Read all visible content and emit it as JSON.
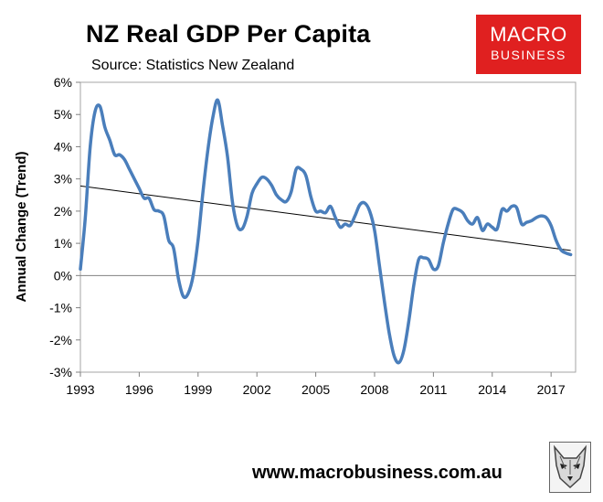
{
  "header": {
    "title": "NZ Real GDP Per Capita",
    "source": "Source: Statistics New Zealand"
  },
  "logo": {
    "line1": "MACRO",
    "line2": "BUSINESS",
    "color": "#e02020"
  },
  "footer": {
    "url": "www.macrobusiness.com.au"
  },
  "chart_data": {
    "type": "line",
    "title": "NZ Real GDP Per Capita",
    "xlabel": "",
    "ylabel": "Annual Change (Trend)",
    "xlim": [
      1993,
      2018.25
    ],
    "ylim": [
      -3,
      6
    ],
    "x_ticks": [
      1993,
      1996,
      1999,
      2002,
      2005,
      2008,
      2011,
      2014,
      2017
    ],
    "x_tick_labels": [
      "1993",
      "1996",
      "1999",
      "2002",
      "2005",
      "2008",
      "2011",
      "2014",
      "2017"
    ],
    "y_ticks": [
      -3,
      -2,
      -1,
      0,
      1,
      2,
      3,
      4,
      5,
      6
    ],
    "y_tick_labels": [
      "-3%",
      "-2%",
      "-1%",
      "0%",
      "1%",
      "2%",
      "3%",
      "4%",
      "5%",
      "6%"
    ],
    "grid": false,
    "series": [
      {
        "name": "Annual change",
        "color": "#4a7ebb",
        "x": [
          1993.0,
          1993.25,
          1993.5,
          1993.75,
          1994.0,
          1994.25,
          1994.5,
          1994.75,
          1995.0,
          1995.25,
          1995.5,
          1995.75,
          1996.0,
          1996.25,
          1996.5,
          1996.75,
          1997.0,
          1997.25,
          1997.5,
          1997.75,
          1998.0,
          1998.25,
          1998.5,
          1998.75,
          1999.0,
          1999.25,
          1999.5,
          1999.75,
          2000.0,
          2000.25,
          2000.5,
          2000.75,
          2001.0,
          2001.25,
          2001.5,
          2001.75,
          2002.0,
          2002.25,
          2002.5,
          2002.75,
          2003.0,
          2003.25,
          2003.5,
          2003.75,
          2004.0,
          2004.25,
          2004.5,
          2004.75,
          2005.0,
          2005.25,
          2005.5,
          2005.75,
          2006.0,
          2006.25,
          2006.5,
          2006.75,
          2007.0,
          2007.25,
          2007.5,
          2007.75,
          2008.0,
          2008.25,
          2008.5,
          2008.75,
          2009.0,
          2009.25,
          2009.5,
          2009.75,
          2010.0,
          2010.25,
          2010.5,
          2010.75,
          2011.0,
          2011.25,
          2011.5,
          2011.75,
          2012.0,
          2012.25,
          2012.5,
          2012.75,
          2013.0,
          2013.25,
          2013.5,
          2013.75,
          2014.0,
          2014.25,
          2014.5,
          2014.75,
          2015.0,
          2015.25,
          2015.5,
          2015.75,
          2016.0,
          2016.25,
          2016.5,
          2016.75,
          2017.0,
          2017.25,
          2017.5,
          2017.75,
          2018.0
        ],
        "values": [
          0.2,
          1.8,
          4.0,
          5.1,
          5.25,
          4.6,
          4.2,
          3.75,
          3.75,
          3.6,
          3.3,
          3.0,
          2.7,
          2.4,
          2.4,
          2.05,
          2.0,
          1.85,
          1.1,
          0.85,
          -0.1,
          -0.65,
          -0.55,
          0.0,
          1.1,
          2.6,
          3.9,
          4.9,
          5.45,
          4.65,
          3.7,
          2.3,
          1.55,
          1.45,
          1.85,
          2.55,
          2.85,
          3.05,
          3.0,
          2.8,
          2.5,
          2.35,
          2.3,
          2.6,
          3.3,
          3.3,
          3.1,
          2.45,
          2.0,
          2.0,
          1.95,
          2.15,
          1.8,
          1.5,
          1.6,
          1.55,
          1.85,
          2.2,
          2.25,
          2.0,
          1.4,
          0.3,
          -0.8,
          -1.8,
          -2.5,
          -2.7,
          -2.3,
          -1.4,
          -0.3,
          0.5,
          0.55,
          0.5,
          0.2,
          0.3,
          1.0,
          1.6,
          2.05,
          2.05,
          1.95,
          1.7,
          1.6,
          1.8,
          1.4,
          1.6,
          1.5,
          1.45,
          2.05,
          2.0,
          2.15,
          2.1,
          1.6,
          1.65,
          1.7,
          1.8,
          1.85,
          1.8,
          1.55,
          1.1,
          0.8,
          0.7,
          0.65
        ]
      }
    ],
    "trendline": {
      "name": "Linear trend",
      "color": "#000000",
      "x": [
        1993.0,
        2018.0
      ],
      "values": [
        2.78,
        0.78
      ]
    }
  }
}
